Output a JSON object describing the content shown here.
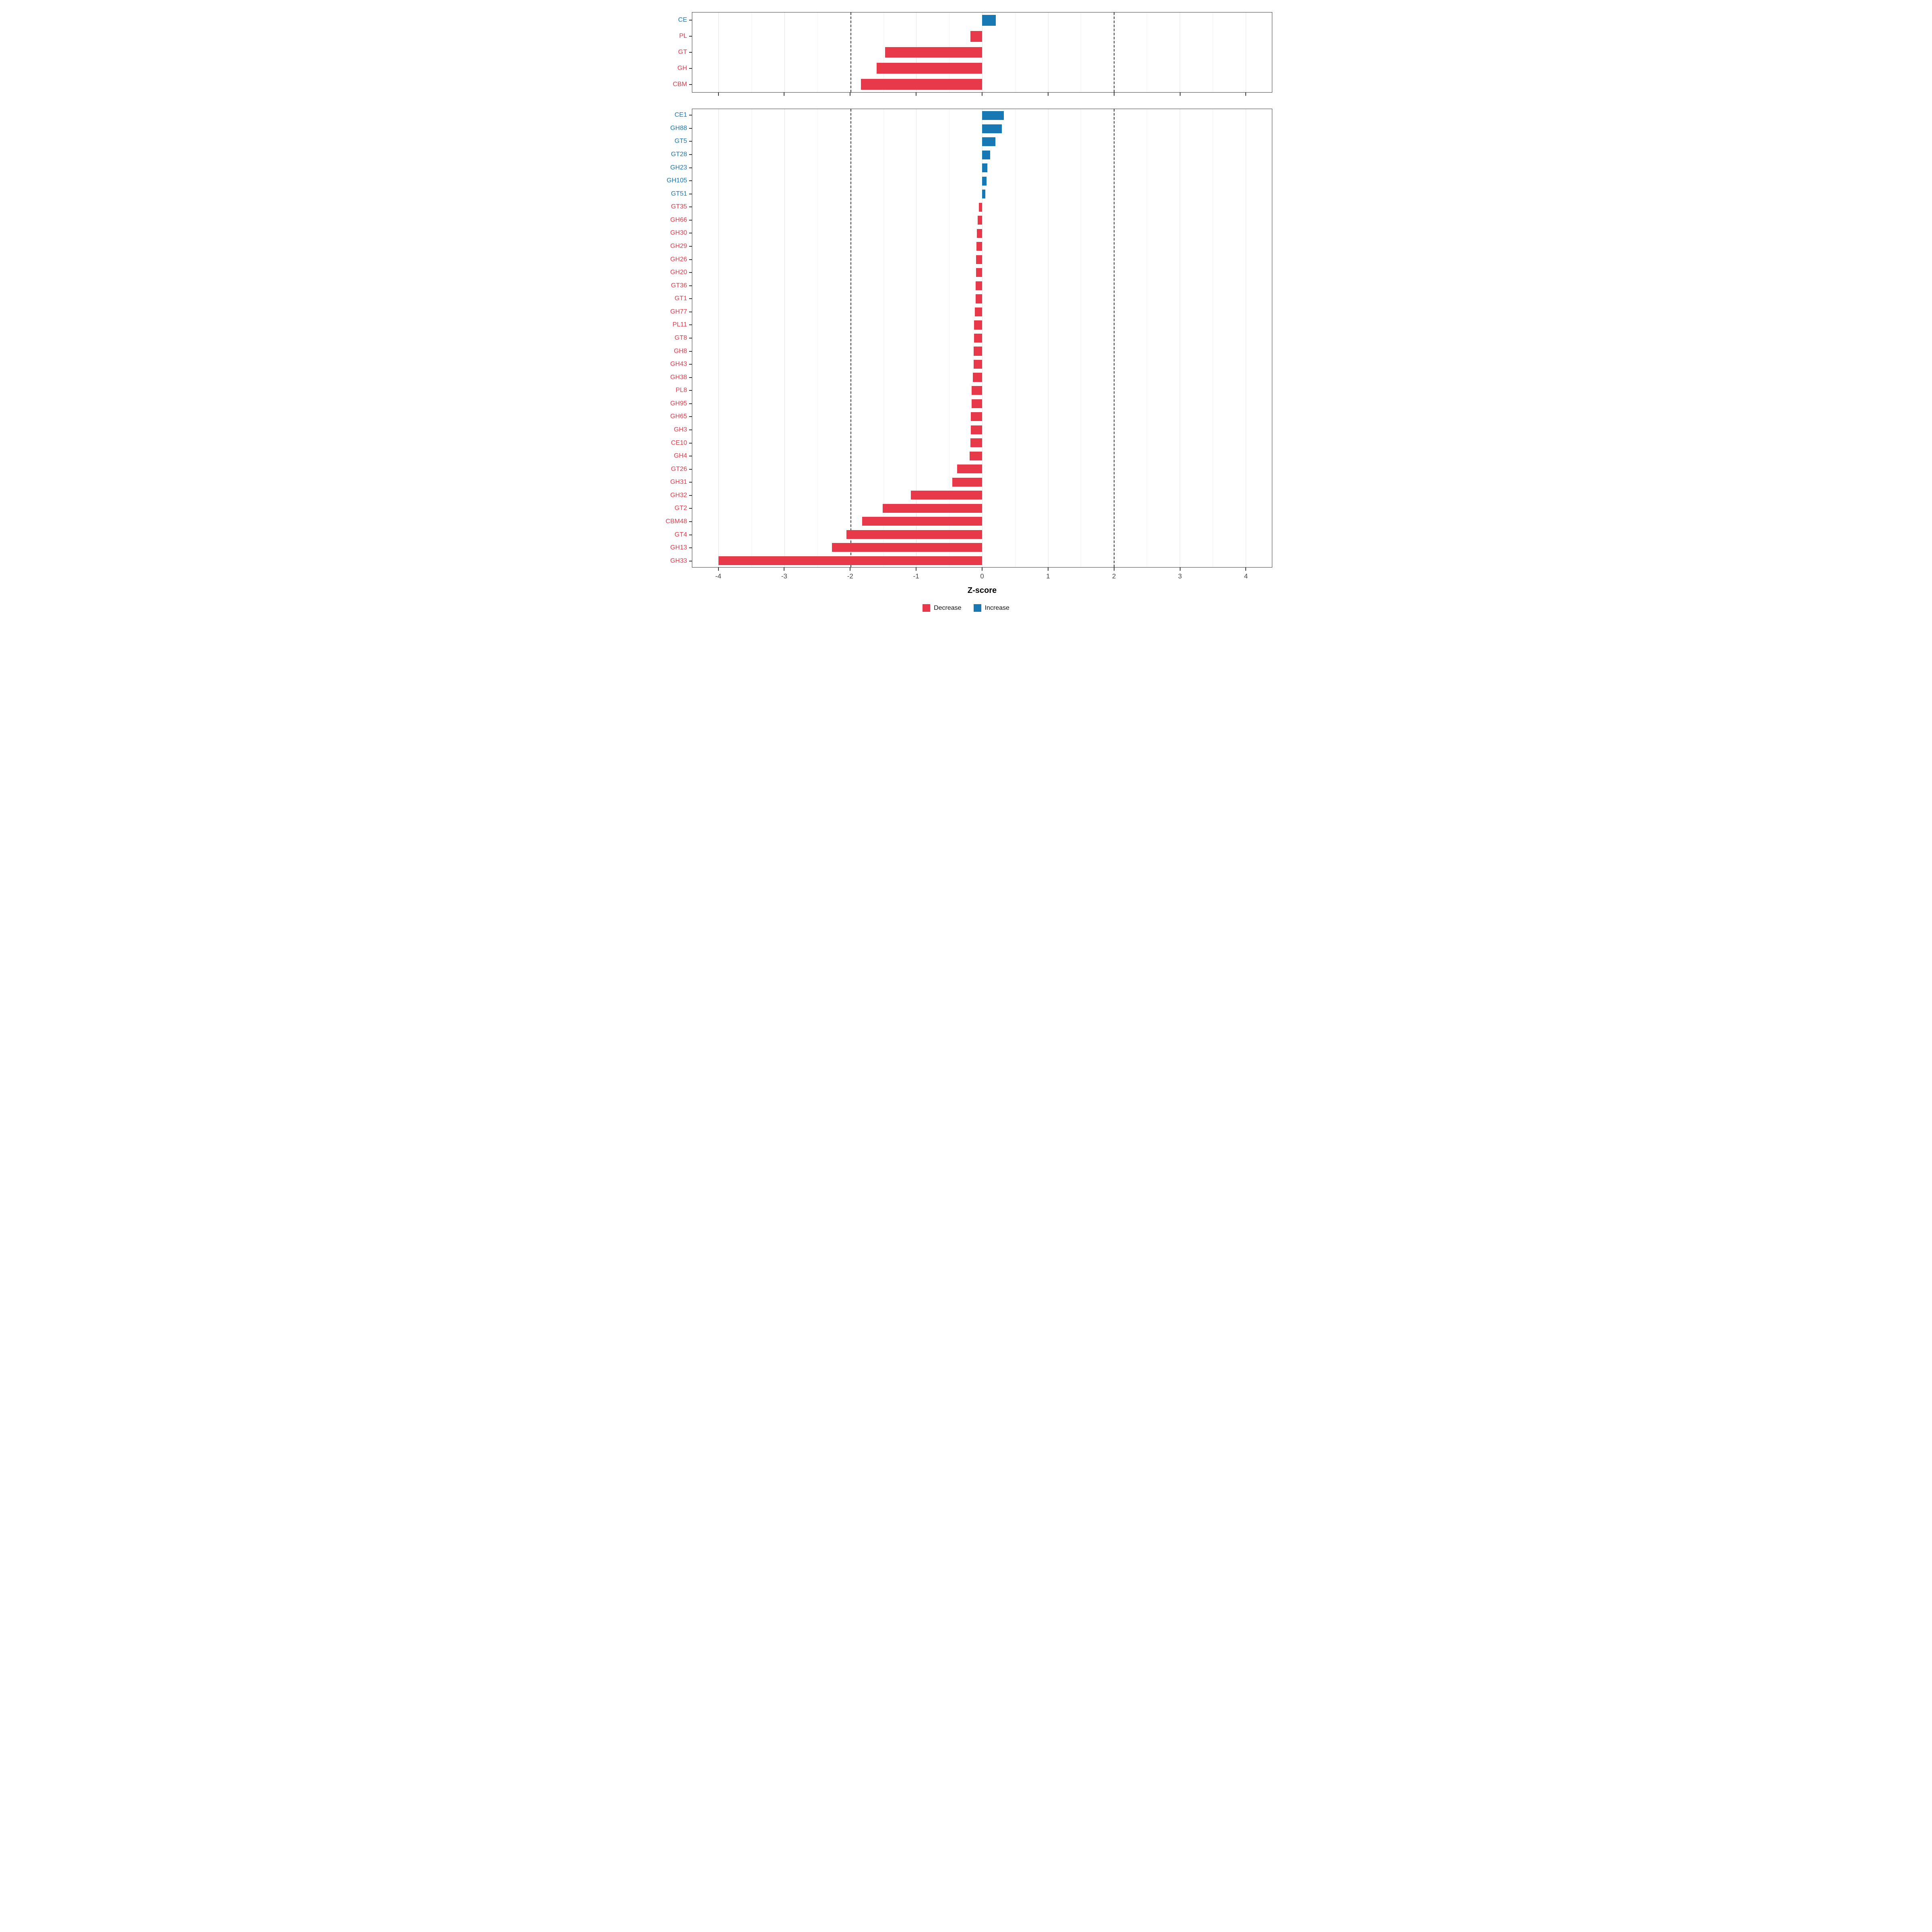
{
  "chart_data": [
    {
      "id": "class-panel",
      "type": "bar",
      "orientation": "horizontal",
      "title": "",
      "categories": [
        "CE",
        "PL",
        "GT",
        "GH",
        "CBM"
      ],
      "values": [
        0.21,
        -0.18,
        -1.47,
        -1.6,
        -1.84
      ],
      "directions": [
        "Increase",
        "Decrease",
        "Decrease",
        "Decrease",
        "Decrease"
      ]
    },
    {
      "id": "family-panel",
      "type": "bar",
      "orientation": "horizontal",
      "title": "",
      "categories": [
        "CE1",
        "GH88",
        "GT5",
        "GT28",
        "GH23",
        "GH105",
        "GT51",
        "GT35",
        "GH66",
        "GH30",
        "GH29",
        "GH26",
        "GH20",
        "GT36",
        "GT1",
        "GH77",
        "PL11",
        "GT8",
        "GH8",
        "GH43",
        "GH38",
        "PL8",
        "GH95",
        "GH65",
        "GH3",
        "CE10",
        "GH4",
        "GT26",
        "GH31",
        "GH32",
        "GT2",
        "CBM48",
        "GT4",
        "GH13",
        "GH33"
      ],
      "values": [
        0.33,
        0.3,
        0.2,
        0.12,
        0.08,
        0.07,
        0.05,
        -0.05,
        -0.07,
        -0.08,
        -0.085,
        -0.09,
        -0.09,
        -0.1,
        -0.1,
        -0.11,
        -0.12,
        -0.12,
        -0.13,
        -0.13,
        -0.14,
        -0.16,
        -0.16,
        -0.17,
        -0.17,
        -0.18,
        -0.19,
        -0.38,
        -0.45,
        -1.08,
        -1.51,
        -1.82,
        -2.06,
        -2.28,
        -4.0
      ],
      "directions": [
        "Increase",
        "Increase",
        "Increase",
        "Increase",
        "Increase",
        "Increase",
        "Increase",
        "Decrease",
        "Decrease",
        "Decrease",
        "Decrease",
        "Decrease",
        "Decrease",
        "Decrease",
        "Decrease",
        "Decrease",
        "Decrease",
        "Decrease",
        "Decrease",
        "Decrease",
        "Decrease",
        "Decrease",
        "Decrease",
        "Decrease",
        "Decrease",
        "Decrease",
        "Decrease",
        "Decrease",
        "Decrease",
        "Decrease",
        "Decrease",
        "Decrease",
        "Decrease",
        "Decrease",
        "Decrease"
      ]
    }
  ],
  "axis": {
    "label": "Z-score",
    "ticks": [
      -4,
      -3,
      -2,
      -1,
      0,
      1,
      2,
      3,
      4
    ],
    "minor_ticks": [
      -3.5,
      -2.5,
      -1.5,
      -0.5,
      0.5,
      1.5,
      2.5,
      3.5
    ],
    "ref_lines": [
      -2,
      2
    ],
    "xlim": [
      -4.4,
      4.4
    ]
  },
  "legend": {
    "items": [
      {
        "label": "Decrease",
        "color": "#e8394a"
      },
      {
        "label": "Increase",
        "color": "#1878b4"
      }
    ]
  },
  "colors": {
    "decrease": "#e8394a",
    "increase": "#1878b4",
    "gridline": "#e4e4e4",
    "panel_border": "#3c3c3c",
    "axis_text": "#454545"
  }
}
